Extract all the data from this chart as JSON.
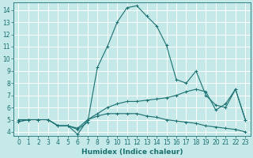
{
  "xlabel": "Humidex (Indice chaleur)",
  "bg_color": "#c5e8e8",
  "grid_color": "#ffffff",
  "line_color": "#1a7070",
  "xlim": [
    -0.5,
    23.5
  ],
  "ylim": [
    3.7,
    14.6
  ],
  "xticks": [
    0,
    1,
    2,
    3,
    4,
    5,
    6,
    7,
    8,
    9,
    10,
    11,
    12,
    13,
    14,
    15,
    16,
    17,
    18,
    19,
    20,
    21,
    22,
    23
  ],
  "yticks": [
    4,
    5,
    6,
    7,
    8,
    9,
    10,
    11,
    12,
    13,
    14
  ],
  "line1_x": [
    0,
    1,
    2,
    3,
    4,
    5,
    6,
    7,
    8,
    9,
    10,
    11,
    12,
    13,
    14,
    15,
    16,
    17,
    18,
    19,
    20,
    21,
    22,
    23
  ],
  "line1_y": [
    5.0,
    5.0,
    5.0,
    5.0,
    4.5,
    4.5,
    4.2,
    4.8,
    9.3,
    11.0,
    13.0,
    14.2,
    14.35,
    13.5,
    12.7,
    11.1,
    8.3,
    8.0,
    9.0,
    7.0,
    6.2,
    6.0,
    7.5,
    5.0
  ],
  "line2_x": [
    0,
    1,
    2,
    3,
    4,
    5,
    6,
    7,
    8,
    9,
    10,
    11,
    12,
    13,
    14,
    15,
    16,
    17,
    18,
    19,
    20,
    21,
    22,
    23
  ],
  "line2_y": [
    4.85,
    5.0,
    5.0,
    5.0,
    4.5,
    4.5,
    4.3,
    5.0,
    5.3,
    5.5,
    5.5,
    5.5,
    5.5,
    5.3,
    5.2,
    5.0,
    4.9,
    4.8,
    4.7,
    4.5,
    4.4,
    4.3,
    4.2,
    4.0
  ],
  "line3_x": [
    0,
    1,
    2,
    3,
    4,
    5,
    6,
    7,
    8,
    9,
    10,
    11,
    12,
    13,
    14,
    15,
    16,
    17,
    18,
    19,
    20,
    21,
    22,
    23
  ],
  "line3_y": [
    4.85,
    5.0,
    5.0,
    5.0,
    4.5,
    4.5,
    3.8,
    5.0,
    5.5,
    6.0,
    6.3,
    6.5,
    6.5,
    6.6,
    6.7,
    6.8,
    7.0,
    7.3,
    7.5,
    7.3,
    5.8,
    6.3,
    7.5,
    5.0
  ],
  "xlabel_fontsize": 6.5,
  "tick_fontsize": 5.5,
  "linewidth": 0.8,
  "markersize": 2.5
}
